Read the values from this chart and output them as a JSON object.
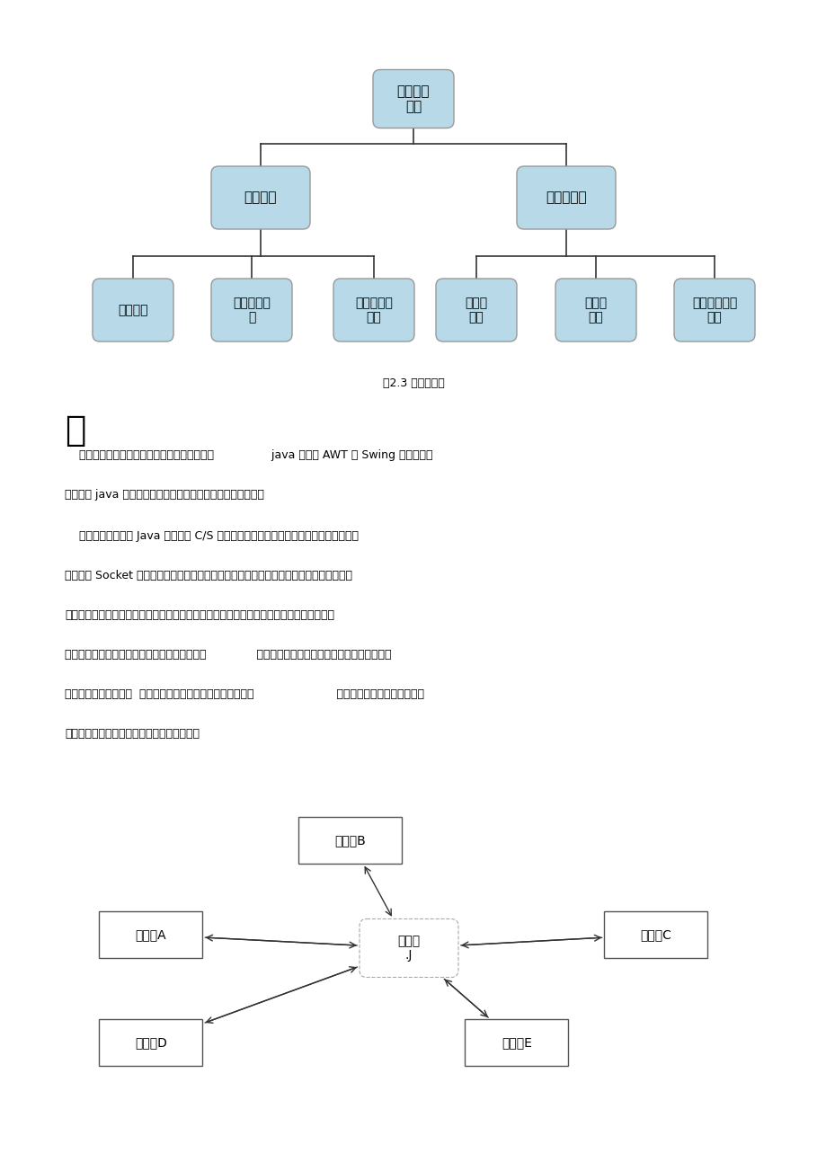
{
  "bg_color": "#ffffff",
  "tree_title": "即时通讯\n系统",
  "tree_level1_nodes": [
    "效劳器：",
    "「客户端】"
  ],
  "tree_level2_server": [
    "端口设置",
    "伏劳器启）\n动",
    "无线用户、\n列表"
  ],
  "tree_level2_client": [
    "注册、\n登录",
    "私聊、\n群聊",
    "「在线用户、\n列表"
  ],
  "tree_caption": "图2.3 系统构造图",
  "tree_box_color": "#b8d9e8",
  "tree_box_edge": "#999999",
  "tree_line_color": "#333333",
  "text_block1_header": "实",
  "text_lines1": [
    "    效劳器和客户端登陆以及客户端群聊界面利用                java 语言的 AWT 和 Swing 实现，群聊",
    "",
    "功能利用 java 语言网络编程的多线程和网络编程的知识实现。"
  ],
  "text_lines2": [
    "    本系统中我们利用 Java 实现基于 C/S 形式的聊天室系统，分为效劳器端和客户端两部",
    "",
    "分，运用 Socket 套接字实现客户方和效劳方的链接，效劳器端通过端口设置在特定端口上",
    "",
    "进展监听，等待客户端的连接，一旦客户端连接成功，那么可以向连接成功的用户发送系统",
    "",
    "消息，可以接收所有客户端发送的消息并显示；              客户端那么与效劳器端规定的端口进展连接，",
    "",
    "连接成功后可以登录，  登录成功后便可以和所选的对象聊天，                       可以发送信息，也可以接收聊",
    "",
    "天对象所发送过来的信息，并显示信息内容。"
  ],
  "net_server_label": "效劳器\n.J",
  "net_labels": {
    "A": "客户端A",
    "B": "客户端B",
    "C": "客户端C",
    "D": "客户端D",
    "E": "客户端E"
  }
}
